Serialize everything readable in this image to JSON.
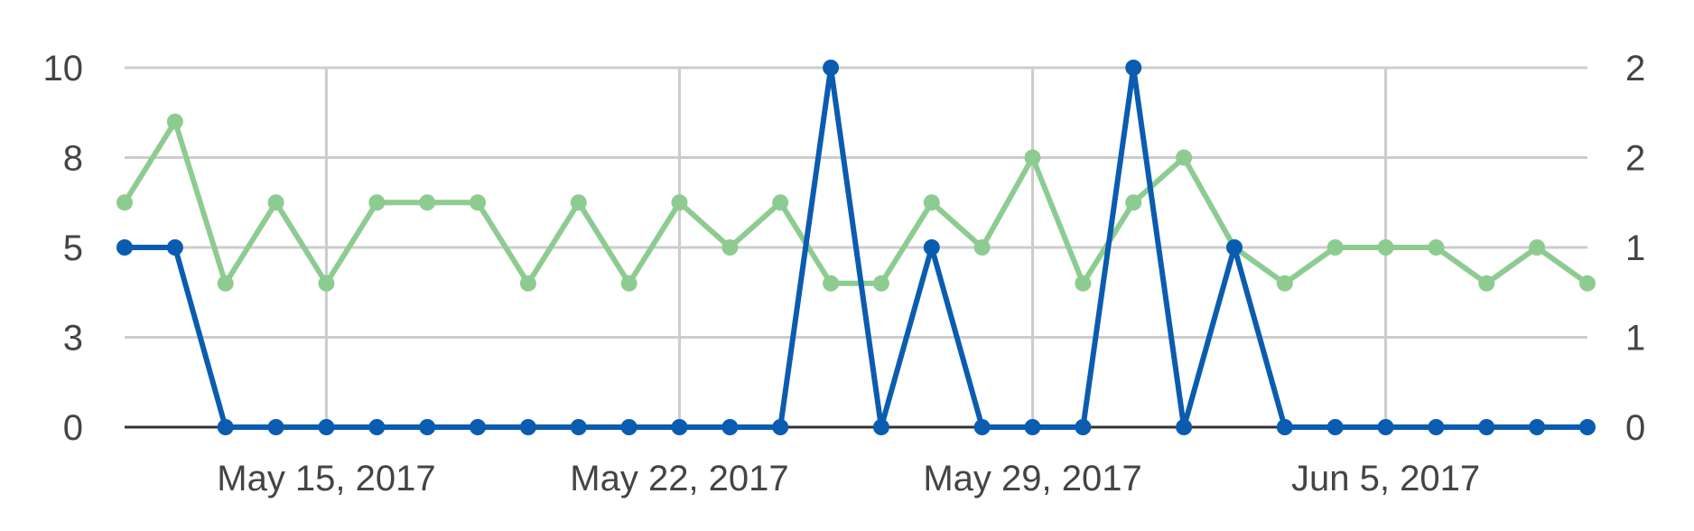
{
  "chart_data": {
    "type": "line",
    "x": [
      "2017-05-11",
      "2017-05-12",
      "2017-05-13",
      "2017-05-14",
      "2017-05-15",
      "2017-05-16",
      "2017-05-17",
      "2017-05-18",
      "2017-05-19",
      "2017-05-20",
      "2017-05-21",
      "2017-05-22",
      "2017-05-23",
      "2017-05-24",
      "2017-05-25",
      "2017-05-26",
      "2017-05-27",
      "2017-05-28",
      "2017-05-29",
      "2017-05-30",
      "2017-05-31",
      "2017-06-01",
      "2017-06-02",
      "2017-06-03",
      "2017-06-04",
      "2017-06-05",
      "2017-06-06",
      "2017-06-07",
      "2017-06-08",
      "2017-06-09"
    ],
    "x_tick_labels": [
      {
        "date": "2017-05-15",
        "label": "May 15, 2017"
      },
      {
        "date": "2017-05-22",
        "label": "May 22, 2017"
      },
      {
        "date": "2017-05-29",
        "label": "May 29, 2017"
      },
      {
        "date": "2017-06-05",
        "label": "Jun 5, 2017"
      }
    ],
    "y_left": {
      "ylim": [
        0,
        10
      ],
      "ticks": [
        0,
        2.5,
        5,
        7.5,
        10
      ],
      "tick_labels": [
        "0",
        "3",
        "5",
        "8",
        "10"
      ]
    },
    "y_right": {
      "ylim": [
        0,
        2
      ],
      "ticks": [
        0,
        0.5,
        1,
        1.5,
        2
      ],
      "tick_labels": [
        "0",
        "1",
        "1",
        "2",
        "2"
      ]
    },
    "grid": true,
    "series": [
      {
        "axis": "right",
        "color": "#8dcc91",
        "values": [
          1.25,
          1.7,
          0.8,
          1.25,
          0.8,
          1.25,
          1.25,
          1.25,
          0.8,
          1.25,
          0.8,
          1.25,
          1.0,
          1.25,
          0.8,
          0.8,
          1.25,
          1.0,
          1.5,
          0.8,
          1.25,
          1.5,
          1.0,
          0.8,
          1.0,
          1.0,
          1.0,
          0.8,
          1.0,
          0.8
        ]
      },
      {
        "axis": "left",
        "color": "#0a5cb0",
        "values": [
          5,
          5,
          0,
          0,
          0,
          0,
          0,
          0,
          0,
          0,
          0,
          0,
          0,
          0,
          10,
          0,
          5,
          0,
          0,
          0,
          10,
          0,
          5,
          0,
          0,
          0,
          0,
          0,
          0,
          0
        ]
      }
    ]
  }
}
